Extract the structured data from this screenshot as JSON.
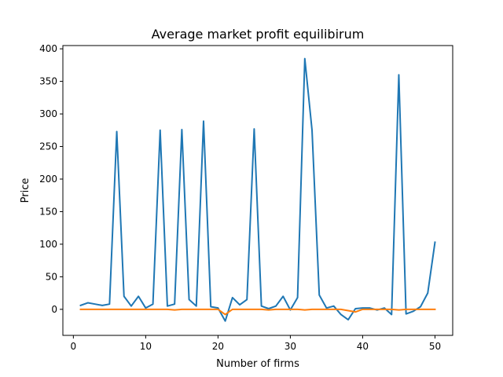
{
  "chart_data": {
    "type": "line",
    "title": "Average market profit equilibirum",
    "xlabel": "Number of firms",
    "ylabel": "Price",
    "xlim": [
      -1.45,
      52.45
    ],
    "ylim": [
      -40,
      405
    ],
    "xticks": [
      0,
      10,
      20,
      30,
      40,
      50
    ],
    "yticks": [
      0,
      50,
      100,
      150,
      200,
      250,
      300,
      350,
      400
    ],
    "grid": false,
    "legend": false,
    "series": [
      {
        "color": "#1f77b4",
        "x": [
          1,
          2,
          3,
          4,
          5,
          6,
          7,
          8,
          9,
          10,
          11,
          12,
          13,
          14,
          15,
          16,
          17,
          18,
          19,
          20,
          21,
          22,
          23,
          24,
          25,
          26,
          27,
          28,
          29,
          30,
          31,
          32,
          33,
          34,
          35,
          36,
          37,
          38,
          39,
          40,
          41,
          42,
          43,
          44,
          45,
          46,
          47,
          48,
          49,
          50
        ],
        "y": [
          6,
          10,
          8,
          6,
          8,
          273,
          20,
          5,
          20,
          2,
          8,
          275,
          5,
          8,
          276,
          15,
          5,
          289,
          4,
          2,
          -18,
          18,
          7,
          15,
          277,
          5,
          1,
          5,
          20,
          -1,
          18,
          385,
          275,
          22,
          2,
          5,
          -8,
          -16,
          1,
          2,
          2,
          -1,
          2,
          -8,
          360,
          -7,
          -3,
          4,
          25,
          103
        ]
      },
      {
        "color": "#ff7f0e",
        "x": [
          1,
          2,
          3,
          4,
          5,
          6,
          7,
          8,
          9,
          10,
          11,
          12,
          13,
          14,
          15,
          16,
          17,
          18,
          19,
          20,
          21,
          22,
          23,
          24,
          25,
          26,
          27,
          28,
          29,
          30,
          31,
          32,
          33,
          34,
          35,
          36,
          37,
          38,
          39,
          40,
          41,
          42,
          43,
          44,
          45,
          46,
          47,
          48,
          49,
          50
        ],
        "y": [
          0,
          0,
          0,
          0,
          0,
          0,
          0,
          0,
          0,
          0,
          0,
          0,
          0,
          -1,
          0,
          0,
          0,
          0,
          0,
          0,
          -8,
          0,
          0,
          0,
          0,
          0,
          -1,
          0,
          0,
          0,
          0,
          -1,
          0,
          0,
          0,
          0,
          0,
          -2,
          -4,
          0,
          0,
          0,
          0,
          0,
          -1,
          0,
          0,
          0,
          0,
          0
        ]
      }
    ]
  }
}
